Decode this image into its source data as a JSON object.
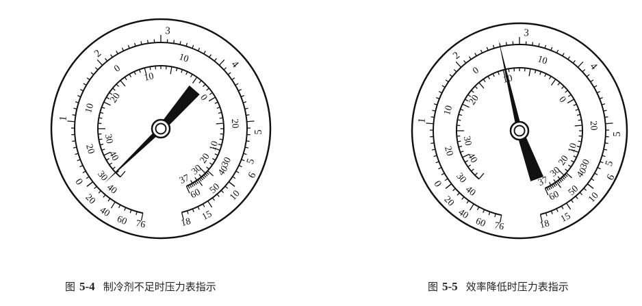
{
  "figures": [
    {
      "label": "图",
      "number": "5-4",
      "caption": "制冷剂不足时压力表指示",
      "gauge": {
        "outer_scale": [
          "0",
          "1",
          "2",
          "3",
          "4",
          "5",
          "5",
          "6"
        ],
        "middle_scale": [
          "0",
          "10",
          "20",
          "30",
          "10",
          "20",
          "40",
          "50",
          "60",
          "10",
          "15",
          "18"
        ],
        "bottom_left_scale": [
          "20",
          "40",
          "60",
          "76"
        ],
        "inner_scale": [
          "10",
          "20",
          "30",
          "40",
          "30",
          "40",
          "0",
          "10",
          "20",
          "30",
          "37"
        ]
      }
    },
    {
      "label": "图",
      "number": "5-5",
      "caption": "效率降低时压力表指示",
      "gauge": {
        "outer_scale": [
          "0",
          "1",
          "2",
          "3",
          "4",
          "5",
          "5",
          "6"
        ],
        "middle_scale": [
          "0",
          "10",
          "20",
          "30",
          "10",
          "20",
          "40",
          "50",
          "60",
          "10",
          "15",
          "18"
        ],
        "bottom_left_scale": [
          "20",
          "40",
          "60",
          "76"
        ],
        "inner_scale": [
          "10",
          "20",
          "30",
          "40",
          "30",
          "40",
          "0",
          "10",
          "20",
          "30",
          "37"
        ]
      }
    }
  ],
  "colors": {
    "ink": "#111111",
    "paper": "#ffffff"
  }
}
